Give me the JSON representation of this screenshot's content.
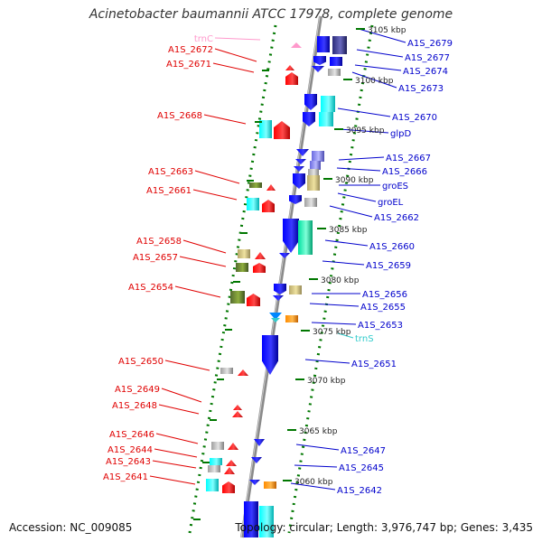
{
  "title": "Acinetobacter baumannii ATCC 17978, complete genome",
  "footer": {
    "accession": "Accession: NC_009085",
    "topology": "Topology: circular; Length: 3,976,747 bp; Genes: 3,435"
  },
  "colors": {
    "left_labels": "#e00000",
    "right_labels": "#0000cc",
    "trna_left": "#ff99cc",
    "trna_right": "#33cccc",
    "backbone": "#888888",
    "tick_dots": "#007700",
    "gene_blue": "#0000ff",
    "gene_cyan": "#00ffff",
    "gene_red": "#ff0000",
    "gene_olive": "#6b8e23",
    "gene_khaki": "#d2c77a",
    "gene_grey": "#b0b0b0",
    "gene_orange": "#ff8c00",
    "gene_indigo": "#3b3b9b"
  },
  "scale": {
    "unit": "kbp",
    "ticks": [
      "3105 kbp",
      "3100 kbp",
      "3095 kbp",
      "3090 kbp",
      "3085 kbp",
      "3080 kbp",
      "3075 kbp",
      "3070 kbp",
      "3065 kbp",
      "3060 kbp"
    ]
  },
  "left_labels": [
    "trnC",
    "A1S_2672",
    "A1S_2671",
    "A1S_2668",
    "A1S_2663",
    "A1S_2661",
    "A1S_2658",
    "A1S_2657",
    "A1S_2654",
    "A1S_2650",
    "A1S_2649",
    "A1S_2648",
    "A1S_2646",
    "A1S_2644",
    "A1S_2643",
    "A1S_2641"
  ],
  "right_labels": [
    "A1S_2679",
    "A1S_2677",
    "A1S_2674",
    "A1S_2673",
    "A1S_2670",
    "glpD",
    "A1S_2667",
    "A1S_2666",
    "groES",
    "groEL",
    "A1S_2662",
    "A1S_2660",
    "A1S_2659",
    "A1S_2656",
    "A1S_2655",
    "A1S_2653",
    "trnS",
    "A1S_2651",
    "A1S_2647",
    "A1S_2645",
    "A1S_2642"
  ]
}
